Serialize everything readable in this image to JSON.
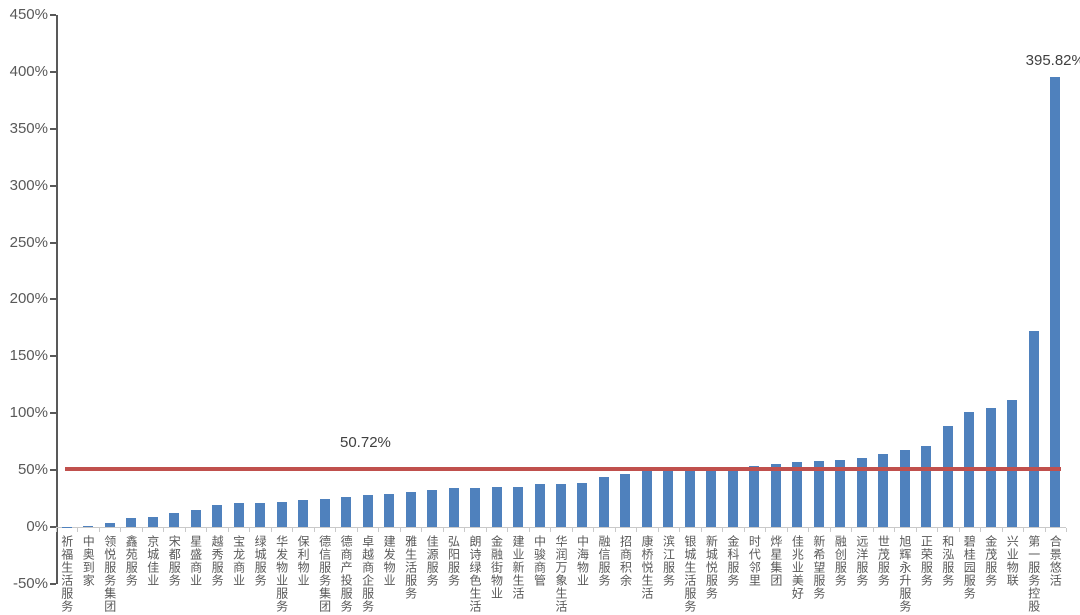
{
  "chart_data": {
    "type": "bar",
    "title": "",
    "xlabel": "",
    "ylabel": "",
    "ylim": [
      -50,
      450
    ],
    "grid": false,
    "legend": "none",
    "bar_color": "#4f81bd",
    "axis_color": "#595959",
    "categories": [
      "祈福生活服务",
      "中奥到家",
      "领悦服务集团",
      "鑫苑服务",
      "京城佳业",
      "宋都服务",
      "星盛商业",
      "越秀服务",
      "宝龙商业",
      "绿城服务",
      "华发物业服务",
      "保利物业",
      "德信服务集团",
      "德商产投服务",
      "卓越商企服务",
      "建发物业",
      "雅生活服务",
      "佳源服务",
      "弘阳服务",
      "朗诗绿色生活",
      "金融街物业",
      "建业新生活",
      "中骏商管",
      "华润万象生活",
      "中海物业",
      "融信服务",
      "招商积余",
      "康桥悦生活",
      "滨江服务",
      "银城生活服务",
      "新城悦服务",
      "金科服务",
      "时代邻里",
      "烨星集团",
      "佳兆业美好",
      "新希望服务",
      "融创服务",
      "远洋服务",
      "世茂服务",
      "旭辉永升服务",
      "正荣服务",
      "和泓服务",
      "碧桂园服务",
      "金茂服务",
      "兴业物联",
      "第一服务控股",
      "合景悠活"
    ],
    "values": [
      0.3,
      1.3,
      3.3,
      8,
      8.6,
      12,
      15,
      19,
      20.8,
      21.3,
      22.2,
      23.7,
      25,
      26.6,
      28,
      28.7,
      30.5,
      32.3,
      34,
      34.5,
      35,
      35.5,
      37.5,
      38,
      39,
      44,
      46.5,
      49.5,
      50,
      50,
      50,
      50,
      53.5,
      55,
      57,
      58,
      59,
      61,
      64,
      68,
      71.5,
      89,
      101.5,
      105,
      111.5,
      172,
      395.82
    ],
    "y_ticks": [
      {
        "label": "450%",
        "value": 450
      },
      {
        "label": "400%",
        "value": 400
      },
      {
        "label": "350%",
        "value": 350
      },
      {
        "label": "300%",
        "value": 300
      },
      {
        "label": "250%",
        "value": 250
      },
      {
        "label": "200%",
        "value": 200
      },
      {
        "label": "150%",
        "value": 150
      },
      {
        "label": "100%",
        "value": 100
      },
      {
        "label": "50%",
        "value": 50
      },
      {
        "label": "0%",
        "value": 0
      },
      {
        "label": "-50%",
        "value": -50
      }
    ],
    "reference_line": {
      "value": 50.72,
      "label": "50.72%",
      "color": "#c0504d"
    },
    "annotations": {
      "max_bar_label": "395.82%",
      "max_bar_index": 46
    }
  }
}
